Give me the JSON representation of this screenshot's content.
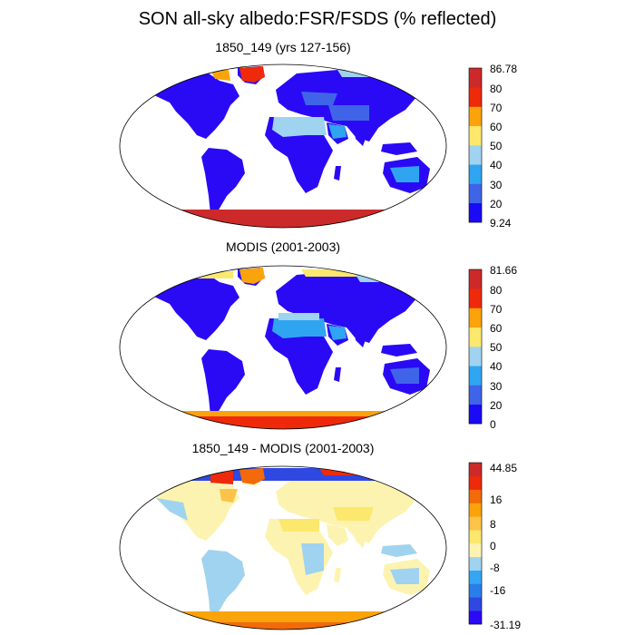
{
  "title": "SON all-sky albedo:FSR/FSDS (% reflected)",
  "panels": [
    {
      "title": "1850_149 (yrs 127-156)",
      "colorbar": {
        "max_label": "86.78",
        "min_label": "9.24",
        "tick_labels": [
          "80",
          "70",
          "60",
          "50",
          "40",
          "30",
          "20"
        ],
        "colors": [
          "#1a0af5",
          "#3f64e8",
          "#2fa5f2",
          "#9fd3f0",
          "#fbe86c",
          "#fba30a",
          "#ee2a0a",
          "#cc2a2a"
        ]
      }
    },
    {
      "title": "MODIS (2001-2003)",
      "colorbar": {
        "max_label": "81.66",
        "min_label": "0",
        "tick_labels": [
          "80",
          "70",
          "60",
          "50",
          "40",
          "30",
          "20"
        ],
        "colors": [
          "#1a0af5",
          "#3f64e8",
          "#2fa5f2",
          "#9fd3f0",
          "#fbe86c",
          "#fba30a",
          "#ee2a0a",
          "#cc2a2a"
        ]
      }
    },
    {
      "title": "1850_149 - MODIS (2001-2003)",
      "colorbar": {
        "max_label": "44.85",
        "min_label": "-31.19",
        "tick_labels": [
          "16",
          "8",
          "0",
          "-8",
          "-16"
        ],
        "colors": [
          "#2a0af5",
          "#3048e2",
          "#2a7ee8",
          "#35a6f3",
          "#9fd3f0",
          "#fdf3b0",
          "#fbe86c",
          "#fbc34a",
          "#fba30a",
          "#f26a0a",
          "#ee2a0a",
          "#cc2a2a"
        ]
      }
    }
  ]
}
